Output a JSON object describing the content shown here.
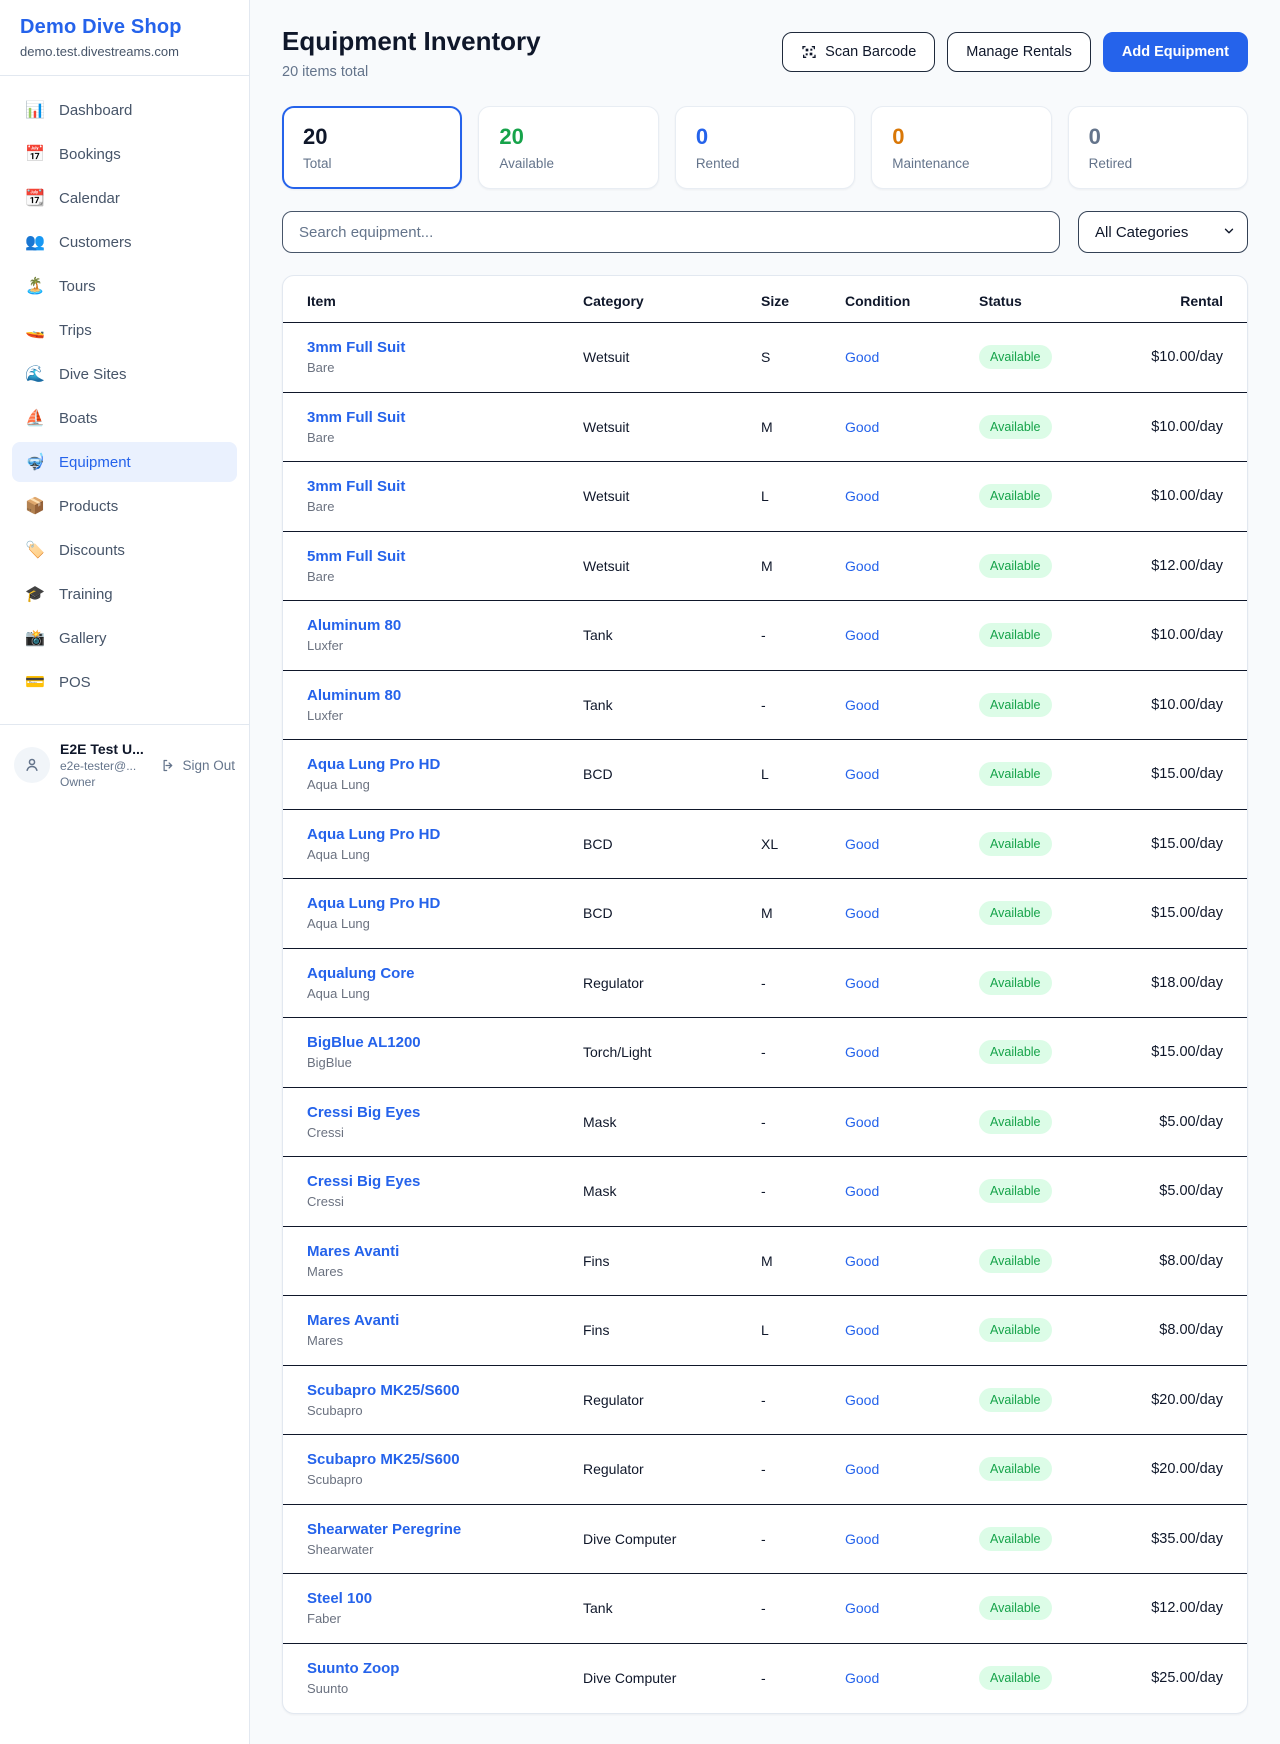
{
  "sidebar": {
    "brand": {
      "name": "Demo Dive Shop",
      "domain": "demo.test.divestreams.com"
    },
    "items": [
      {
        "label": "Dashboard",
        "icon": "📊",
        "icon_name": "dashboard-icon",
        "active": false
      },
      {
        "label": "Bookings",
        "icon": "📅",
        "icon_name": "bookings-icon",
        "active": false
      },
      {
        "label": "Calendar",
        "icon": "📆",
        "icon_name": "calendar-icon",
        "active": false
      },
      {
        "label": "Customers",
        "icon": "👥",
        "icon_name": "customers-icon",
        "active": false
      },
      {
        "label": "Tours",
        "icon": "🏝️",
        "icon_name": "tours-icon",
        "active": false
      },
      {
        "label": "Trips",
        "icon": "🚤",
        "icon_name": "trips-icon",
        "active": false
      },
      {
        "label": "Dive Sites",
        "icon": "🌊",
        "icon_name": "dive-sites-icon",
        "active": false
      },
      {
        "label": "Boats",
        "icon": "⛵",
        "icon_name": "boats-icon",
        "active": false
      },
      {
        "label": "Equipment",
        "icon": "🤿",
        "icon_name": "equipment-icon",
        "active": true
      },
      {
        "label": "Products",
        "icon": "📦",
        "icon_name": "products-icon",
        "active": false
      },
      {
        "label": "Discounts",
        "icon": "🏷️",
        "icon_name": "discounts-icon",
        "active": false
      },
      {
        "label": "Training",
        "icon": "🎓",
        "icon_name": "training-icon",
        "active": false
      },
      {
        "label": "Gallery",
        "icon": "📸",
        "icon_name": "gallery-icon",
        "active": false
      },
      {
        "label": "POS",
        "icon": "💳",
        "icon_name": "pos-icon",
        "active": false
      }
    ],
    "user": {
      "name": "E2E Test U...",
      "email": "e2e-tester@...",
      "role": "Owner",
      "sign_out_label": "Sign Out"
    }
  },
  "header": {
    "title": "Equipment Inventory",
    "subtitle": "20 items total",
    "scan_button": "Scan Barcode",
    "manage_button": "Manage Rentals",
    "add_button": "Add Equipment"
  },
  "stats": [
    {
      "value": "20",
      "label": "Total",
      "color": "#0f172a",
      "selected": true
    },
    {
      "value": "20",
      "label": "Available",
      "color": "#16a34a",
      "selected": false
    },
    {
      "value": "0",
      "label": "Rented",
      "color": "#2563eb",
      "selected": false
    },
    {
      "value": "0",
      "label": "Maintenance",
      "color": "#d97706",
      "selected": false
    },
    {
      "value": "0",
      "label": "Retired",
      "color": "#64748b",
      "selected": false
    }
  ],
  "filters": {
    "search_placeholder": "Search equipment...",
    "category_selected": "All Categories"
  },
  "table": {
    "columns": [
      "Item",
      "Category",
      "Size",
      "Condition",
      "Status",
      "Rental"
    ],
    "rows": [
      {
        "name": "3mm Full Suit",
        "brand": "Bare",
        "category": "Wetsuit",
        "size": "S",
        "condition": "Good",
        "status": "Available",
        "rental": "$10.00/day"
      },
      {
        "name": "3mm Full Suit",
        "brand": "Bare",
        "category": "Wetsuit",
        "size": "M",
        "condition": "Good",
        "status": "Available",
        "rental": "$10.00/day"
      },
      {
        "name": "3mm Full Suit",
        "brand": "Bare",
        "category": "Wetsuit",
        "size": "L",
        "condition": "Good",
        "status": "Available",
        "rental": "$10.00/day"
      },
      {
        "name": "5mm Full Suit",
        "brand": "Bare",
        "category": "Wetsuit",
        "size": "M",
        "condition": "Good",
        "status": "Available",
        "rental": "$12.00/day"
      },
      {
        "name": "Aluminum 80",
        "brand": "Luxfer",
        "category": "Tank",
        "size": "-",
        "condition": "Good",
        "status": "Available",
        "rental": "$10.00/day"
      },
      {
        "name": "Aluminum 80",
        "brand": "Luxfer",
        "category": "Tank",
        "size": "-",
        "condition": "Good",
        "status": "Available",
        "rental": "$10.00/day"
      },
      {
        "name": "Aqua Lung Pro HD",
        "brand": "Aqua Lung",
        "category": "BCD",
        "size": "L",
        "condition": "Good",
        "status": "Available",
        "rental": "$15.00/day"
      },
      {
        "name": "Aqua Lung Pro HD",
        "brand": "Aqua Lung",
        "category": "BCD",
        "size": "XL",
        "condition": "Good",
        "status": "Available",
        "rental": "$15.00/day"
      },
      {
        "name": "Aqua Lung Pro HD",
        "brand": "Aqua Lung",
        "category": "BCD",
        "size": "M",
        "condition": "Good",
        "status": "Available",
        "rental": "$15.00/day"
      },
      {
        "name": "Aqualung Core",
        "brand": "Aqua Lung",
        "category": "Regulator",
        "size": "-",
        "condition": "Good",
        "status": "Available",
        "rental": "$18.00/day"
      },
      {
        "name": "BigBlue AL1200",
        "brand": "BigBlue",
        "category": "Torch/Light",
        "size": "-",
        "condition": "Good",
        "status": "Available",
        "rental": "$15.00/day"
      },
      {
        "name": "Cressi Big Eyes",
        "brand": "Cressi",
        "category": "Mask",
        "size": "-",
        "condition": "Good",
        "status": "Available",
        "rental": "$5.00/day"
      },
      {
        "name": "Cressi Big Eyes",
        "brand": "Cressi",
        "category": "Mask",
        "size": "-",
        "condition": "Good",
        "status": "Available",
        "rental": "$5.00/day"
      },
      {
        "name": "Mares Avanti",
        "brand": "Mares",
        "category": "Fins",
        "size": "M",
        "condition": "Good",
        "status": "Available",
        "rental": "$8.00/day"
      },
      {
        "name": "Mares Avanti",
        "brand": "Mares",
        "category": "Fins",
        "size": "L",
        "condition": "Good",
        "status": "Available",
        "rental": "$8.00/day"
      },
      {
        "name": "Scubapro MK25/S600",
        "brand": "Scubapro",
        "category": "Regulator",
        "size": "-",
        "condition": "Good",
        "status": "Available",
        "rental": "$20.00/day"
      },
      {
        "name": "Scubapro MK25/S600",
        "brand": "Scubapro",
        "category": "Regulator",
        "size": "-",
        "condition": "Good",
        "status": "Available",
        "rental": "$20.00/day"
      },
      {
        "name": "Shearwater Peregrine",
        "brand": "Shearwater",
        "category": "Dive Computer",
        "size": "-",
        "condition": "Good",
        "status": "Available",
        "rental": "$35.00/day"
      },
      {
        "name": "Steel 100",
        "brand": "Faber",
        "category": "Tank",
        "size": "-",
        "condition": "Good",
        "status": "Available",
        "rental": "$12.00/day"
      },
      {
        "name": "Suunto Zoop",
        "brand": "Suunto",
        "category": "Dive Computer",
        "size": "-",
        "condition": "Good",
        "status": "Available",
        "rental": "$25.00/day"
      }
    ]
  },
  "colors": {
    "accent_blue": "#2563eb",
    "status_green": "#16a34a",
    "status_green_bg": "#dcfce7",
    "maintenance_orange": "#d97706",
    "muted_gray": "#64748b",
    "row_divider": "#0f172a"
  },
  "icons": {
    "scan": "qr-scan-brackets",
    "sign_out": "door-arrow-right",
    "avatar": "person-outline",
    "select_chevron": "chevron-down"
  }
}
